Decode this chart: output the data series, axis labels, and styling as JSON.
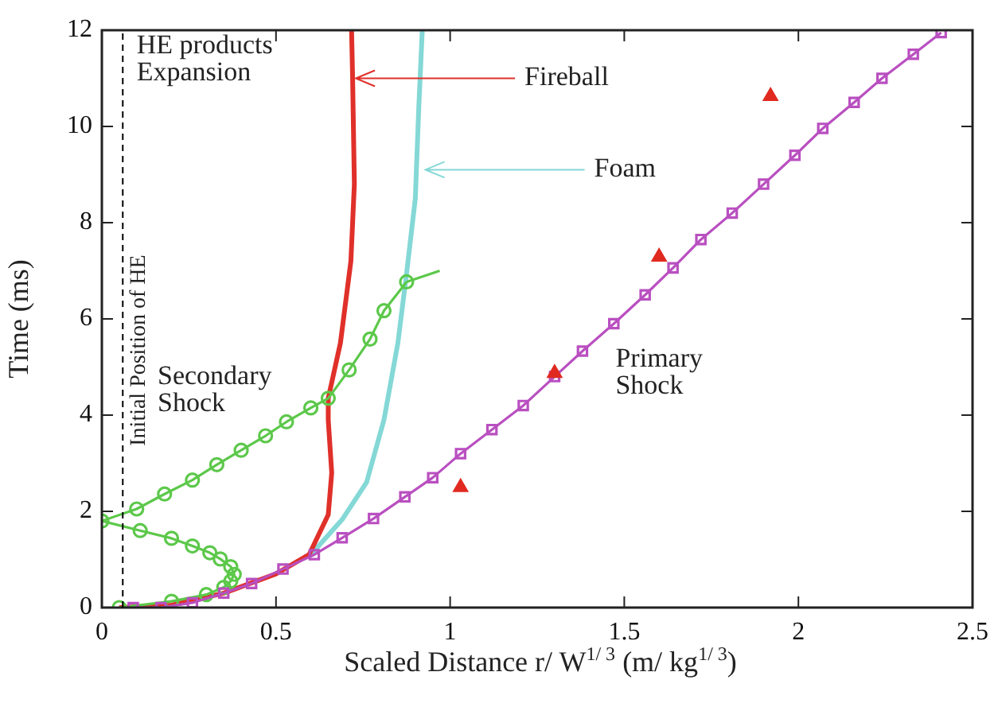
{
  "chart_data": {
    "type": "line",
    "xlabel": "Scaled Distance r/ W$^{1/ 3}$ (m/ kg$^{1/ 3}$)",
    "ylabel": "Time (ms)",
    "xlim": [
      0,
      2.5
    ],
    "xticks": [
      0,
      0.5,
      1,
      1.5,
      2,
      2.5
    ],
    "ylim": [
      0,
      12
    ],
    "yticks": [
      0,
      2,
      4,
      6,
      8,
      10,
      12
    ],
    "grid": false,
    "legend": false,
    "series": [
      {
        "type": "line",
        "marker": "square",
        "color": "#b94fc0",
        "x": [
          0.09,
          0.17,
          0.26,
          0.35,
          0.43,
          0.52,
          0.61,
          0.69,
          0.78,
          0.87,
          0.95,
          1.03,
          1.12,
          1.21,
          1.3,
          1.38,
          1.47,
          1.56,
          1.64,
          1.72,
          1.81,
          1.9,
          1.99,
          2.07,
          2.16,
          2.24,
          2.33,
          2.41
        ],
        "values": [
          0,
          0,
          0.1,
          0.3,
          0.5,
          0.8,
          1.1,
          1.45,
          1.85,
          2.3,
          2.7,
          3.2,
          3.7,
          4.2,
          4.8,
          5.33,
          5.9,
          6.5,
          7.06,
          7.65,
          8.2,
          8.8,
          9.4,
          9.96,
          10.5,
          11,
          11.5,
          11.95
        ]
      },
      {
        "type": "line",
        "marker": "circle",
        "color": "#5cc84a",
        "x": [
          0.05,
          0.2,
          0.3,
          0.35,
          0.37,
          0.38,
          0.37,
          0.34,
          0.31,
          0.26,
          0.2,
          0.11,
          0,
          0.1,
          0.18,
          0.26,
          0.33,
          0.4,
          0.47,
          0.53,
          0.6,
          0.65,
          0.71,
          0.77,
          0.81,
          0.875
        ],
        "values": [
          0,
          0.13,
          0.27,
          0.42,
          0.55,
          0.69,
          0.85,
          1.01,
          1.14,
          1.28,
          1.44,
          1.6,
          1.8,
          2.05,
          2.36,
          2.65,
          2.97,
          3.27,
          3.57,
          3.86,
          4.15,
          4.35,
          4.94,
          5.58,
          6.17,
          6.77
        ]
      },
      {
        "type": "line",
        "marker": "none",
        "color": "#5cc84a",
        "x": [
          0.875,
          0.97
        ],
        "values": [
          6.77,
          7
        ]
      },
      {
        "type": "line",
        "marker": "none",
        "color": "#e0302a",
        "x": [
          0.05,
          0.2,
          0.35,
          0.5,
          0.595,
          0.65,
          0.66,
          0.65,
          0.65,
          0.685,
          0.715,
          0.725,
          0.72,
          0.717
        ],
        "values": [
          0,
          0.05,
          0.3,
          0.7,
          1.1,
          1.93,
          2.8,
          3.9,
          4.35,
          5.5,
          7.2,
          8.8,
          11,
          12
        ]
      },
      {
        "type": "line",
        "marker": "none",
        "color": "#84d8d6",
        "x": [
          0.6,
          0.69,
          0.76,
          0.81,
          0.85,
          0.875,
          0.9,
          0.91,
          0.92
        ],
        "values": [
          1.1,
          1.83,
          2.6,
          3.9,
          5.5,
          6.95,
          8.5,
          10.4,
          12
        ]
      },
      {
        "type": "scatter",
        "marker": "triangle",
        "color": "#e02a20",
        "x": [
          1.03,
          1.3,
          1.6,
          1.92
        ],
        "values": [
          2.5,
          4.87,
          7.29,
          10.63
        ]
      }
    ],
    "ref_lines": [
      {
        "axis": "x",
        "value": 0.06,
        "label": "Initial Position of HE",
        "line_style": "dashed",
        "color": "#000000"
      }
    ],
    "annotations": [
      "HE products Expansion",
      {
        "text": "Fireball",
        "x": 0.72,
        "y": 11
      },
      {
        "text": "Foam",
        "x": 0.92,
        "y": 9.1
      },
      "Secondary Shock",
      "Primary Shock"
    ]
  }
}
